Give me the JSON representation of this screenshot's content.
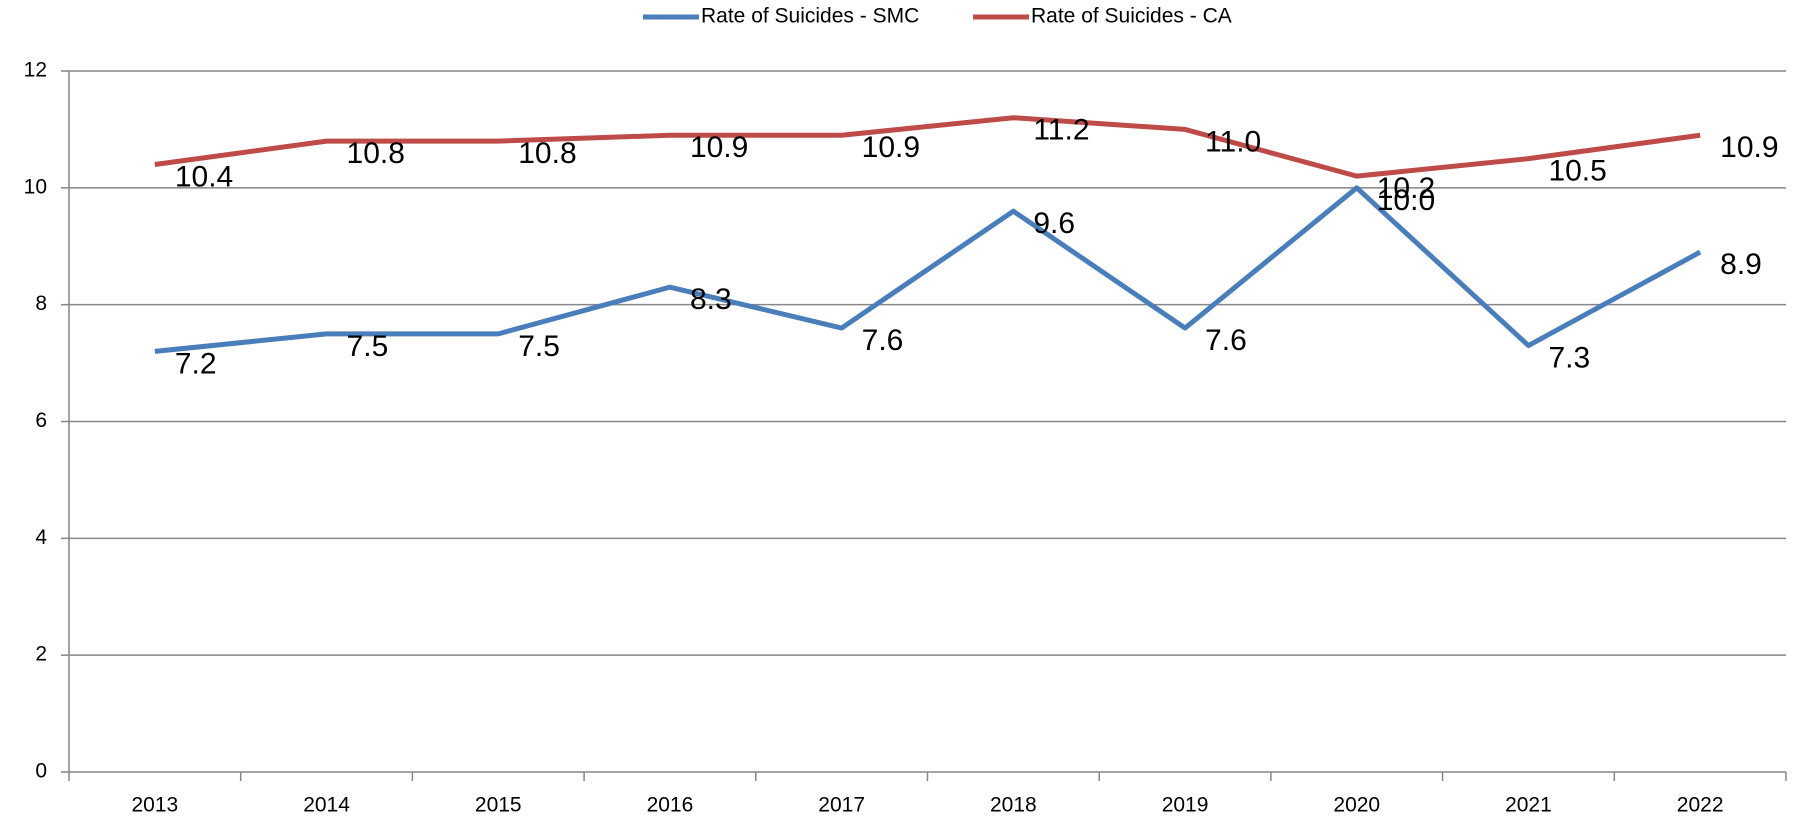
{
  "chart_data": {
    "type": "line",
    "categories": [
      "2013",
      "2014",
      "2015",
      "2016",
      "2017",
      "2018",
      "2019",
      "2020",
      "2021",
      "2022"
    ],
    "series": [
      {
        "name": "Rate of Suicides - SMC",
        "color": "#4a7ebb",
        "values": [
          7.2,
          7.5,
          7.5,
          8.3,
          7.6,
          9.6,
          7.6,
          10.0,
          7.3,
          8.9
        ],
        "value_labels": [
          "7.2",
          "7.5",
          "7.5",
          "8.3",
          "7.6",
          "9.6",
          "7.6",
          "10.0",
          "7.3",
          "8.9"
        ]
      },
      {
        "name": "Rate of Suicides - CA",
        "color": "#be4b48",
        "values": [
          10.4,
          10.8,
          10.8,
          10.9,
          10.9,
          11.2,
          11.0,
          10.2,
          10.5,
          10.9
        ],
        "value_labels": [
          "10.4",
          "10.8",
          "10.8",
          "10.9",
          "10.9",
          "11.2",
          "11.0",
          "10.2",
          "10.5",
          "10.9"
        ]
      }
    ],
    "ylim": [
      0,
      12
    ],
    "yticks": [
      0,
      2,
      4,
      6,
      8,
      10,
      12
    ],
    "grid": true,
    "legend": "top"
  }
}
